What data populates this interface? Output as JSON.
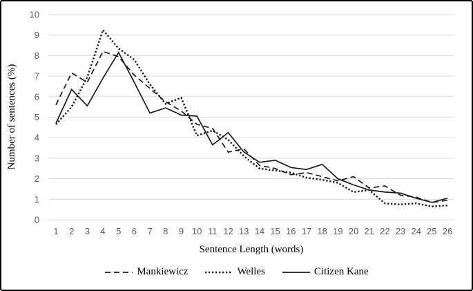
{
  "chart_data": {
    "type": "line",
    "title": "",
    "xlabel": "Sentence Length (words)",
    "ylabel": "Number of sentences (%)",
    "x_ticks": [
      1,
      2,
      3,
      4,
      5,
      6,
      7,
      8,
      9,
      10,
      11,
      12,
      13,
      14,
      15,
      16,
      17,
      18,
      19,
      20,
      21,
      22,
      23,
      24,
      25,
      26
    ],
    "y_ticks": [
      0,
      1,
      2,
      3,
      4,
      5,
      6,
      7,
      8,
      9,
      10
    ],
    "ylim": [
      0,
      10
    ],
    "grid": "horizontal-only",
    "legend_position": "bottom",
    "series": [
      {
        "name": "Mankiewicz",
        "style": "long-dash",
        "color": "#1a1a1a",
        "values": [
          5.6,
          7.15,
          6.7,
          8.2,
          7.95,
          7.05,
          6.4,
          5.75,
          5.3,
          4.65,
          4.45,
          3.3,
          3.45,
          2.65,
          2.5,
          2.2,
          2.3,
          2.1,
          1.9,
          2.1,
          1.55,
          1.65,
          1.2,
          1.1,
          0.85,
          0.95
        ]
      },
      {
        "name": "Welles",
        "style": "dotted",
        "color": "#1a1a1a",
        "values": [
          4.65,
          5.5,
          6.95,
          9.25,
          8.35,
          7.8,
          6.6,
          5.65,
          5.95,
          4.1,
          4.35,
          3.9,
          3.1,
          2.5,
          2.4,
          2.3,
          2.05,
          1.95,
          1.8,
          1.35,
          1.45,
          0.8,
          0.75,
          0.8,
          0.65,
          0.7
        ]
      },
      {
        "name": "Citizen Kane",
        "style": "solid",
        "color": "#1a1a1a",
        "values": [
          4.7,
          6.35,
          5.55,
          6.9,
          8.15,
          6.7,
          5.2,
          5.45,
          5.1,
          5.05,
          3.65,
          4.25,
          3.3,
          2.8,
          2.9,
          2.55,
          2.45,
          2.7,
          2.0,
          1.7,
          1.45,
          1.35,
          1.3,
          1.05,
          0.85,
          1.05
        ]
      }
    ],
    "colors": {
      "gridline": "#d9d9d9",
      "tick_label": "#595959",
      "axis_title": "#000000",
      "line": "#1a1a1a"
    }
  }
}
